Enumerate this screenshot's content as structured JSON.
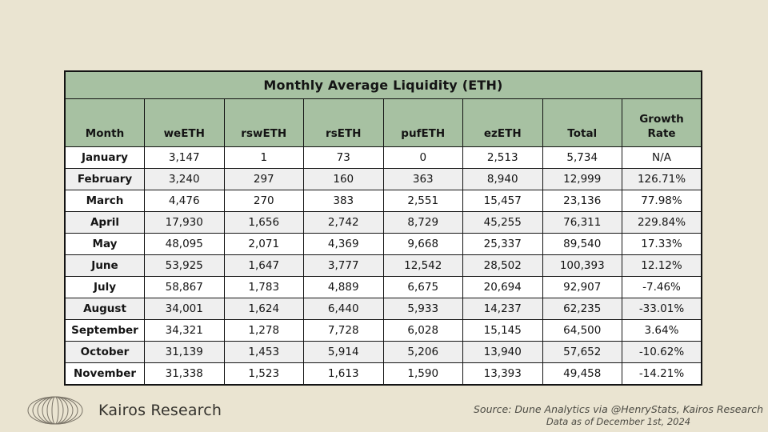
{
  "chart_data": {
    "type": "table",
    "title": "Monthly Average Liquidity (ETH)",
    "columns": [
      "Month",
      "weETH",
      "rswETH",
      "rsETH",
      "pufETH",
      "ezETH",
      "Total",
      "Growth Rate"
    ],
    "rows": [
      [
        "January",
        "3,147",
        "1",
        "73",
        "0",
        "2,513",
        "5,734",
        "N/A"
      ],
      [
        "February",
        "3,240",
        "297",
        "160",
        "363",
        "8,940",
        "12,999",
        "126.71%"
      ],
      [
        "March",
        "4,476",
        "270",
        "383",
        "2,551",
        "15,457",
        "23,136",
        "77.98%"
      ],
      [
        "April",
        "17,930",
        "1,656",
        "2,742",
        "8,729",
        "45,255",
        "76,311",
        "229.84%"
      ],
      [
        "May",
        "48,095",
        "2,071",
        "4,369",
        "9,668",
        "25,337",
        "89,540",
        "17.33%"
      ],
      [
        "June",
        "53,925",
        "1,647",
        "3,777",
        "12,542",
        "28,502",
        "100,393",
        "12.12%"
      ],
      [
        "July",
        "58,867",
        "1,783",
        "4,889",
        "6,675",
        "20,694",
        "92,907",
        "-7.46%"
      ],
      [
        "August",
        "34,001",
        "1,624",
        "6,440",
        "5,933",
        "14,237",
        "62,235",
        "-33.01%"
      ],
      [
        "September",
        "34,321",
        "1,278",
        "7,728",
        "6,028",
        "15,145",
        "64,500",
        "3.64%"
      ],
      [
        "October",
        "31,139",
        "1,453",
        "5,914",
        "5,206",
        "13,940",
        "57,652",
        "-10.62%"
      ],
      [
        "November",
        "31,338",
        "1,523",
        "1,613",
        "1,590",
        "13,393",
        "49,458",
        "-14.21%"
      ]
    ],
    "layout_hints": {
      "striped_rows": "even rows gray",
      "header_style": "green band, bold, bottom-aligned"
    }
  },
  "colors": {
    "page_background": "#eae4d1",
    "header_green": "#a7c1a2",
    "row_alt_gray": "#efefef",
    "border_black": "#141414"
  },
  "footer": {
    "brand": "Kairos Research",
    "source_line1": "Source: Dune Analytics via @HenryStats, Kairos Research",
    "source_line2": "Data as of December 1st, 2024"
  }
}
